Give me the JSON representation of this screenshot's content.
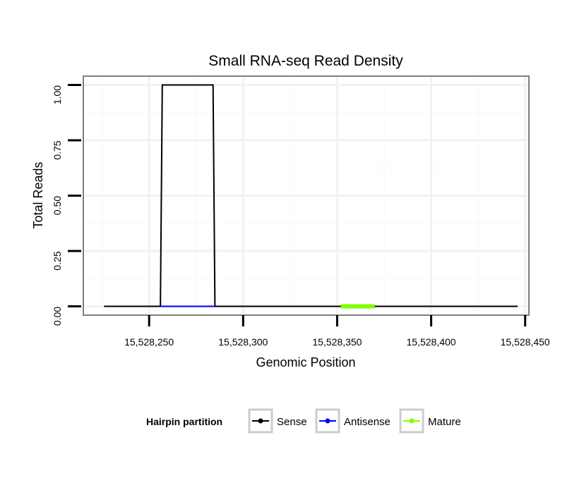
{
  "chart_data": {
    "type": "line",
    "title": "Small RNA-seq Read Density",
    "xlabel": "Genomic Position",
    "ylabel": "Total Reads",
    "xlim": [
      15528215,
      15528452
    ],
    "ylim": [
      -0.04,
      1.04
    ],
    "x_ticks": [
      15528250,
      15528300,
      15528350,
      15528400,
      15528450
    ],
    "x_tick_labels": [
      "15,528,250",
      "15,528,300",
      "15,528,350",
      "15,528,400",
      "15,528,450"
    ],
    "y_ticks": [
      0,
      0.25,
      0.5,
      0.75,
      1.0
    ],
    "y_tick_labels": [
      "0.00",
      "0.25",
      "0.50",
      "0.75",
      "1.00"
    ],
    "grid": true,
    "legend_position": "bottom",
    "legend": {
      "title": "Hairpin partition",
      "entries": [
        "Sense",
        "Antisense",
        "Mature"
      ]
    },
    "series": [
      {
        "name": "Sense",
        "color": "#000000",
        "x": [
          15528226,
          15528256,
          15528257,
          15528284,
          15528285,
          15528446
        ],
        "y": [
          0,
          0,
          1,
          1,
          0,
          0
        ]
      },
      {
        "name": "Antisense",
        "color": "#0000ff",
        "x": [
          15528256,
          15528285
        ],
        "y": [
          0,
          0
        ]
      },
      {
        "name": "Mature",
        "color": "#7fff00",
        "x": [
          15528352,
          15528370
        ],
        "y": [
          0,
          0
        ]
      }
    ]
  }
}
